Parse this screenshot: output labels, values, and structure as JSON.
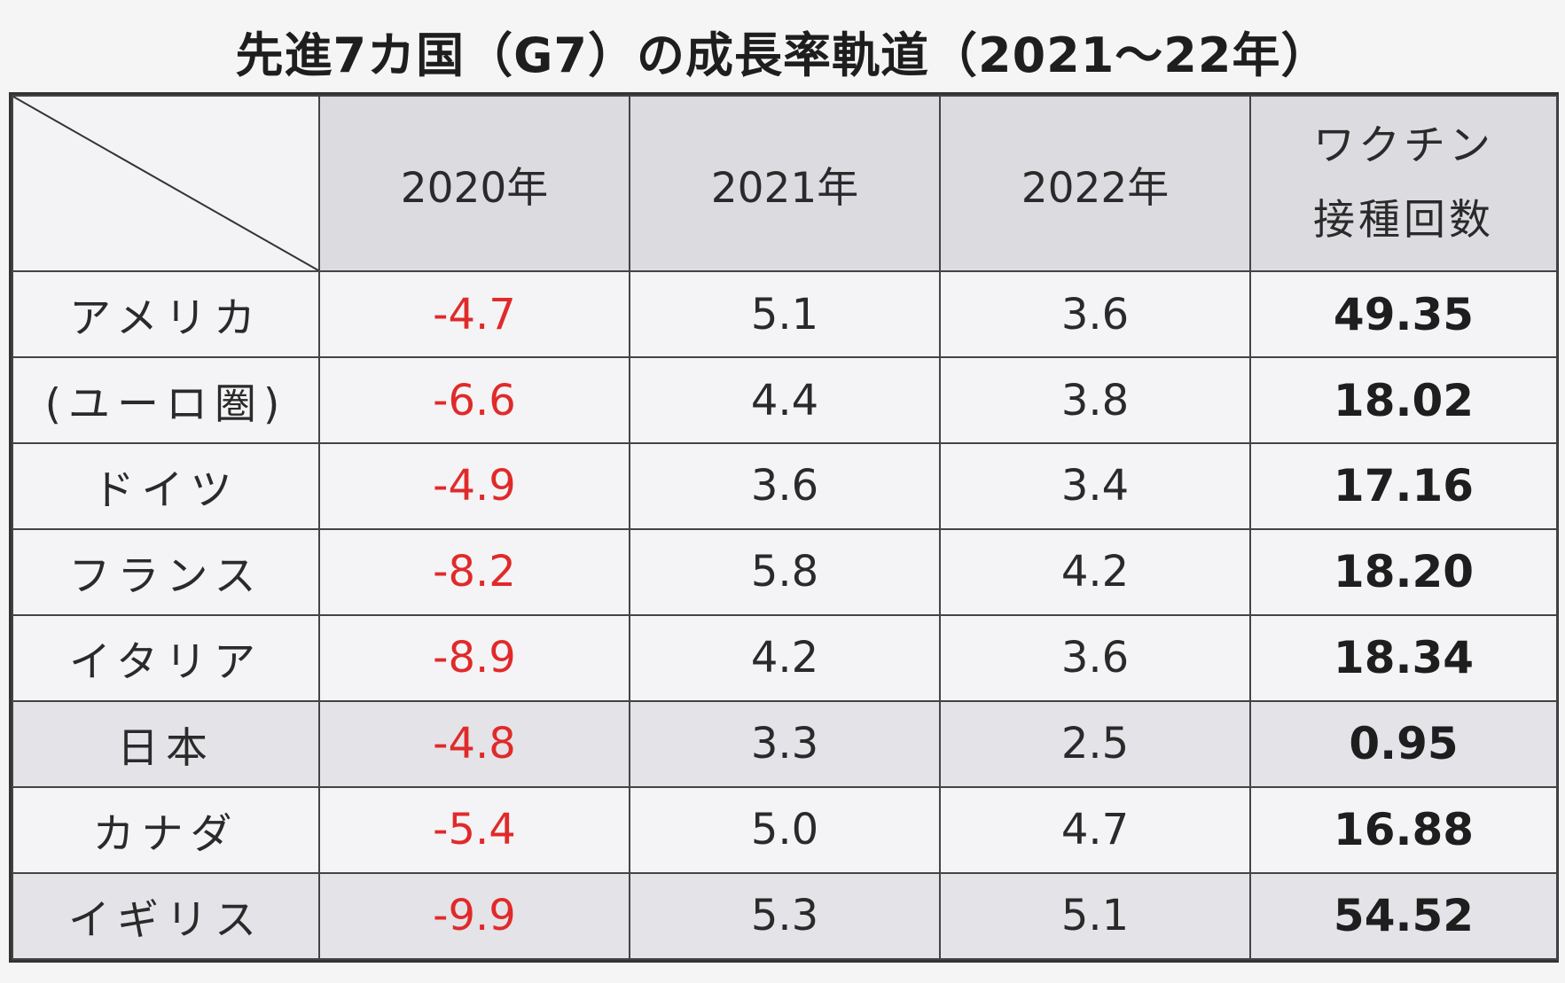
{
  "title": "先進7カ国（G7）の成長率軌道（2021〜22年）",
  "header": {
    "col_2020": "2020年",
    "col_2021": "2021年",
    "col_2022": "2022年",
    "col_vaccine_line1": "ワクチン",
    "col_vaccine_line2": "接種回数"
  },
  "rows": [
    {
      "country": "アメリカ",
      "y2020": "-4.7",
      "y2021": "5.1",
      "y2022": "3.6",
      "vaccine": "49.35"
    },
    {
      "country": "(ユーロ圏)",
      "y2020": "-6.6",
      "y2021": "4.4",
      "y2022": "3.8",
      "vaccine": "18.02"
    },
    {
      "country": "ドイツ",
      "y2020": "-4.9",
      "y2021": "3.6",
      "y2022": "3.4",
      "vaccine": "17.16"
    },
    {
      "country": "フランス",
      "y2020": "-8.2",
      "y2021": "5.8",
      "y2022": "4.2",
      "vaccine": "18.20"
    },
    {
      "country": "イタリア",
      "y2020": "-8.9",
      "y2021": "4.2",
      "y2022": "3.6",
      "vaccine": "18.34"
    },
    {
      "country": "日本",
      "y2020": "-4.8",
      "y2021": "3.3",
      "y2022": "2.5",
      "vaccine": "0.95"
    },
    {
      "country": "カナダ",
      "y2020": "-5.4",
      "y2021": "5.0",
      "y2022": "4.7",
      "vaccine": "16.88"
    },
    {
      "country": "イギリス",
      "y2020": "-9.9",
      "y2021": "5.3",
      "y2022": "5.1",
      "vaccine": "54.52"
    }
  ],
  "colors": {
    "negative": "#e02a2a",
    "header_bg": "#dcdbe0"
  }
}
